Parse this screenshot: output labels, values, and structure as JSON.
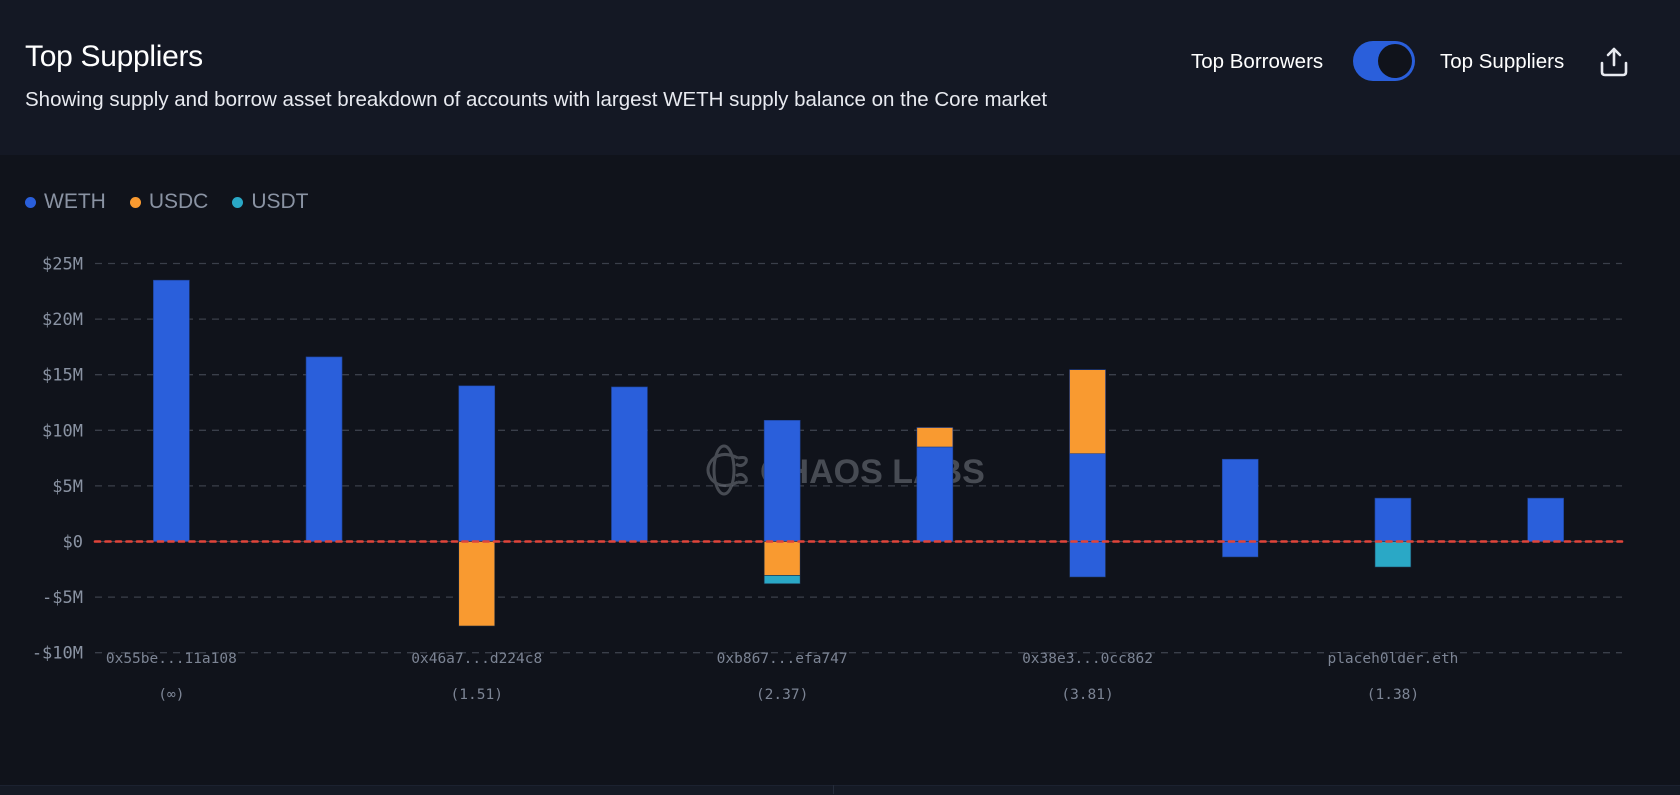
{
  "header": {
    "title": "Top Suppliers",
    "subtitle": "Showing supply and borrow asset breakdown of accounts with largest WETH supply balance on the Core market"
  },
  "controls": {
    "left_label": "Top Borrowers",
    "right_label": "Top Suppliers",
    "toggle_state": "Top Suppliers",
    "export_icon": "share-upload-icon"
  },
  "colors": {
    "WETH": "#2a5fdb",
    "USDC": "#f99a30",
    "USDT": "#2aa8c6",
    "zero_line": "#e0443a",
    "accent": "#2a5fdb"
  },
  "watermark": "CHAOS LABS",
  "chart_data": {
    "type": "bar",
    "stacked": true,
    "title": "Top Suppliers",
    "xlabel": "",
    "ylabel": "",
    "ylim": [
      -10,
      25
    ],
    "y_unit": "$M",
    "yticks": [
      25,
      20,
      15,
      10,
      5,
      0,
      -5,
      -10
    ],
    "ytick_labels": [
      "$25M",
      "$20M",
      "$15M",
      "$10M",
      "$5M",
      "$0",
      "-$5M",
      "-$10M"
    ],
    "grid": true,
    "legend": "top-left",
    "legend_entries": [
      "WETH",
      "USDC",
      "USDT"
    ],
    "categories": [
      "0x55be...11a108",
      "",
      "0x46a7...d224c8",
      "",
      "0xb867...efa747",
      "",
      "0x38e3...0cc862",
      "",
      "placeh0lder.eth",
      ""
    ],
    "tick_labels": [
      {
        "index": 0,
        "label": "0x55be...11a108",
        "sublabel": "(∞)"
      },
      {
        "index": 2,
        "label": "0x46a7...d224c8",
        "sublabel": "(1.51)"
      },
      {
        "index": 4,
        "label": "0xb867...efa747",
        "sublabel": "(2.37)"
      },
      {
        "index": 6,
        "label": "0x38e3...0cc862",
        "sublabel": "(3.81)"
      },
      {
        "index": 8,
        "label": "placeh0lder.eth",
        "sublabel": "(1.38)"
      }
    ],
    "series": [
      {
        "name": "WETH",
        "supply": [
          23.5,
          16.6,
          14.0,
          13.9,
          10.9,
          8.5,
          7.9,
          7.4,
          3.9,
          3.9
        ],
        "borrow": [
          0,
          0,
          0,
          0,
          0,
          0,
          -3.2,
          -1.4,
          0,
          0
        ]
      },
      {
        "name": "USDC",
        "supply": [
          0,
          0,
          0,
          0,
          0,
          1.75,
          7.55,
          0,
          0,
          0
        ],
        "borrow": [
          0,
          0,
          -7.6,
          0,
          -3.05,
          0,
          0,
          0,
          0,
          0
        ]
      },
      {
        "name": "USDT",
        "supply": [
          0,
          0,
          0,
          0,
          0,
          0,
          0,
          0,
          0,
          0
        ],
        "borrow": [
          0,
          0,
          0,
          0,
          -0.75,
          0,
          0,
          0,
          -2.3,
          0
        ]
      }
    ]
  }
}
